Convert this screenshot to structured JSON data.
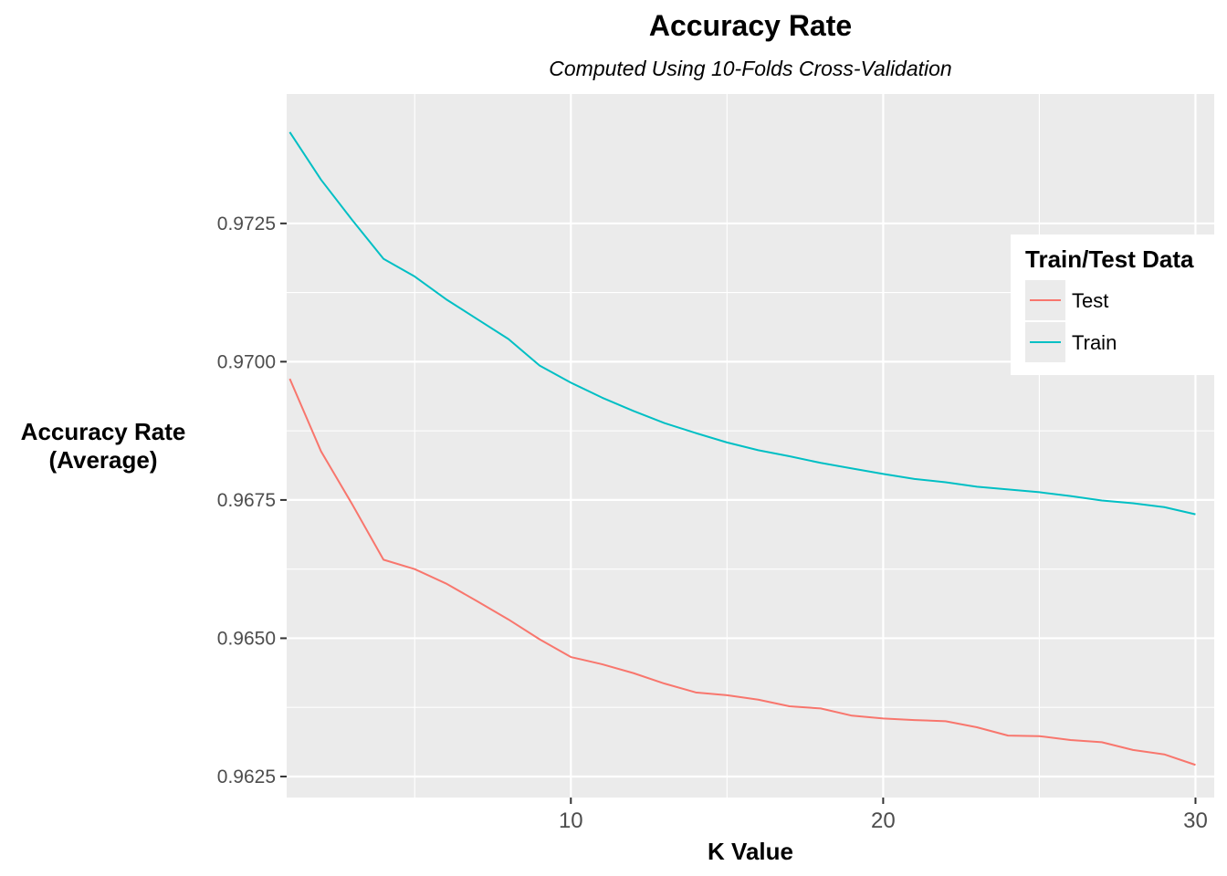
{
  "chart_data": {
    "type": "line",
    "title": "Accuracy Rate",
    "subtitle": "Computed Using 10-Folds Cross-Validation",
    "xlabel": "K Value",
    "ylabel_lines": [
      "Accuracy Rate",
      "(Average)"
    ],
    "xlim": [
      0.9,
      30.6
    ],
    "ylim": [
      0.96212,
      0.97484
    ],
    "x_ticks": [
      10,
      20,
      30
    ],
    "y_ticks": [
      0.9625,
      0.965,
      0.9675,
      0.97,
      0.9725
    ],
    "y_tick_labels": [
      "0.9625",
      "0.9650",
      "0.9675",
      "0.9700",
      "0.9725"
    ],
    "grid": true,
    "legend": {
      "title": "Train/Test Data",
      "placement": "right",
      "entries": [
        "Test",
        "Train"
      ]
    },
    "x": [
      1,
      2,
      3,
      4,
      5,
      6,
      7,
      8,
      9,
      10,
      11,
      12,
      13,
      14,
      15,
      16,
      17,
      18,
      19,
      20,
      21,
      22,
      23,
      24,
      25,
      26,
      27,
      28,
      29,
      30
    ],
    "series": [
      {
        "name": "Test",
        "color": "#f8766d",
        "values": [
          0.96969,
          0.96838,
          0.96742,
          0.96642,
          0.96625,
          0.96599,
          0.96567,
          0.96534,
          0.96498,
          0.96466,
          0.96453,
          0.96437,
          0.96418,
          0.96402,
          0.96397,
          0.96389,
          0.96377,
          0.96373,
          0.9636,
          0.96355,
          0.96352,
          0.9635,
          0.96339,
          0.96324,
          0.96323,
          0.96316,
          0.96312,
          0.96298,
          0.9629,
          0.96271
        ]
      },
      {
        "name": "Train",
        "color": "#00bfc4",
        "values": [
          0.97415,
          0.97329,
          0.97256,
          0.97186,
          0.97154,
          0.97113,
          0.97077,
          0.97041,
          0.96993,
          0.96962,
          0.96935,
          0.96911,
          0.96889,
          0.96871,
          0.96854,
          0.9684,
          0.96829,
          0.96817,
          0.96807,
          0.96797,
          0.96788,
          0.96782,
          0.96774,
          0.96769,
          0.96764,
          0.96757,
          0.96749,
          0.96744,
          0.96737,
          0.96724
        ]
      }
    ]
  }
}
